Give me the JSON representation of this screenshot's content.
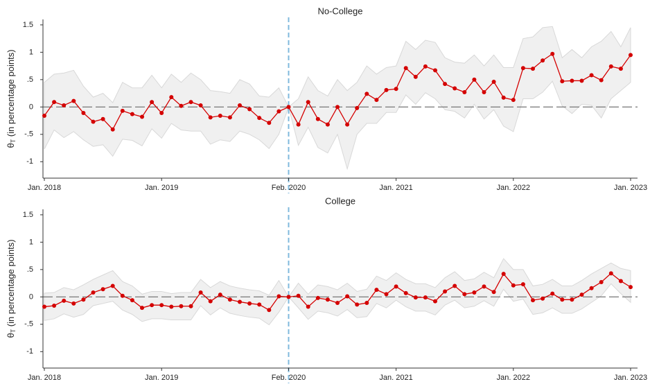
{
  "chart_data": [
    {
      "type": "line",
      "title": "No-College",
      "ylabel": {
        "symbol": "θ",
        "subscript": "T",
        "text": " (in percentage points)"
      },
      "categories": [
        "Jan. 2018",
        null,
        null,
        null,
        null,
        null,
        null,
        null,
        null,
        null,
        null,
        null,
        "Jan. 2019",
        null,
        null,
        null,
        null,
        null,
        null,
        null,
        null,
        null,
        null,
        null,
        null,
        "Feb. 2020",
        null,
        null,
        null,
        null,
        null,
        null,
        null,
        null,
        null,
        null,
        "Jan. 2021",
        null,
        null,
        null,
        null,
        null,
        null,
        null,
        null,
        null,
        null,
        null,
        "Jan. 2022",
        null,
        null,
        null,
        null,
        null,
        null,
        null,
        null,
        null,
        null,
        null,
        "Jan. 2023"
      ],
      "values": [
        -0.16,
        0.09,
        0.03,
        0.11,
        -0.11,
        -0.27,
        -0.22,
        -0.41,
        -0.07,
        -0.13,
        -0.18,
        0.09,
        -0.11,
        0.18,
        0.02,
        0.09,
        0.03,
        -0.19,
        -0.16,
        -0.19,
        0.03,
        -0.04,
        -0.2,
        -0.29,
        -0.08,
        0,
        -0.32,
        0.09,
        -0.22,
        -0.32,
        0,
        -0.32,
        -0.02,
        0.24,
        0.13,
        0.31,
        0.33,
        0.71,
        0.55,
        0.74,
        0.67,
        0.42,
        0.34,
        0.27,
        0.5,
        0.27,
        0.46,
        0.17,
        0.13,
        0.71,
        0.7,
        0.85,
        0.97,
        0.47,
        0.48,
        0.48,
        0.58,
        0.49,
        0.74,
        0.7,
        0.95
      ],
      "ci_upper": [
        0.45,
        0.6,
        0.62,
        0.67,
        0.38,
        0.18,
        0.25,
        0.08,
        0.45,
        0.35,
        0.35,
        0.58,
        0.35,
        0.6,
        0.45,
        0.62,
        0.5,
        0.3,
        0.28,
        0.25,
        0.5,
        0.42,
        0.2,
        0.18,
        0.35,
        0,
        0.15,
        0.55,
        0.3,
        0.2,
        0.5,
        0.3,
        0.45,
        0.75,
        0.6,
        0.72,
        0.75,
        1.2,
        1.05,
        1.22,
        1.18,
        0.9,
        0.82,
        0.8,
        0.95,
        0.75,
        0.95,
        0.72,
        0.72,
        1.25,
        1.28,
        1.45,
        1.47,
        0.9,
        1.05,
        0.9,
        1.1,
        1.2,
        1.38,
        1.1,
        1.45
      ],
      "ci_lower": [
        -0.77,
        -0.42,
        -0.56,
        -0.45,
        -0.6,
        -0.72,
        -0.69,
        -0.9,
        -0.59,
        -0.61,
        -0.71,
        -0.4,
        -0.57,
        -0.3,
        -0.42,
        -0.44,
        -0.44,
        -0.68,
        -0.6,
        -0.63,
        -0.44,
        -0.5,
        -0.6,
        -0.76,
        -0.5,
        0,
        -0.7,
        -0.37,
        -0.74,
        -0.84,
        -0.5,
        -1.13,
        -0.5,
        -0.3,
        -0.3,
        -0.1,
        -0.1,
        0.22,
        0.05,
        0.26,
        0.15,
        -0.05,
        -0.08,
        -0.2,
        0.05,
        -0.22,
        -0.05,
        -0.35,
        -0.45,
        0.15,
        0.15,
        0.27,
        0.47,
        0.02,
        -0.12,
        0.05,
        0.03,
        -0.2,
        0.15,
        0.3,
        0.45
      ],
      "color": "#d40000",
      "band_color": "#f0f0f0",
      "band_edge": "#d8d8d8",
      "ylim": [
        -1.3,
        1.6
      ],
      "yticks": [
        -1,
        {
          "value": -0.5,
          "label": "-.5"
        },
        0,
        {
          "value": 0.5,
          "label": ".5"
        },
        1,
        1.5
      ],
      "hline": 0,
      "vline": 25
    },
    {
      "type": "line",
      "title": "College",
      "ylabel": {
        "symbol": "θ",
        "subscript": "T",
        "text": " (in percentage points)"
      },
      "categories": [
        "Jan. 2018",
        null,
        null,
        null,
        null,
        null,
        null,
        null,
        null,
        null,
        null,
        null,
        "Jan. 2019",
        null,
        null,
        null,
        null,
        null,
        null,
        null,
        null,
        null,
        null,
        null,
        null,
        "Feb. 2020",
        null,
        null,
        null,
        null,
        null,
        null,
        null,
        null,
        null,
        null,
        "Jan. 2021",
        null,
        null,
        null,
        null,
        null,
        null,
        null,
        null,
        null,
        null,
        null,
        "Jan. 2022",
        null,
        null,
        null,
        null,
        null,
        null,
        null,
        null,
        null,
        null,
        null,
        "Jan. 2023"
      ],
      "values": [
        -0.18,
        -0.16,
        -0.07,
        -0.12,
        -0.05,
        0.08,
        0.14,
        0.2,
        0.02,
        -0.06,
        -0.2,
        -0.15,
        -0.15,
        -0.18,
        -0.17,
        -0.17,
        0.08,
        -0.08,
        0.04,
        -0.05,
        -0.09,
        -0.12,
        -0.14,
        -0.24,
        0.01,
        0,
        0.02,
        -0.18,
        -0.02,
        -0.05,
        -0.11,
        0.01,
        -0.14,
        -0.11,
        0.13,
        0.05,
        0.19,
        0.07,
        -0.01,
        -0.01,
        -0.08,
        0.1,
        0.2,
        0.05,
        0.08,
        0.19,
        0.09,
        0.42,
        0.21,
        0.23,
        -0.06,
        -0.03,
        0.06,
        -0.05,
        -0.05,
        0.04,
        0.16,
        0.27,
        0.43,
        0.29,
        0.18
      ],
      "ci_upper": [
        0.07,
        0.08,
        0.17,
        0.13,
        0.22,
        0.32,
        0.4,
        0.48,
        0.28,
        0.2,
        0.05,
        0.1,
        0.1,
        0.06,
        0.08,
        0.08,
        0.32,
        0.17,
        0.28,
        0.2,
        0.16,
        0.13,
        0.11,
        0.03,
        0.3,
        0,
        0.25,
        0.05,
        0.22,
        0.19,
        0.13,
        0.25,
        0.1,
        0.14,
        0.38,
        0.3,
        0.44,
        0.32,
        0.24,
        0.24,
        0.17,
        0.35,
        0.46,
        0.3,
        0.33,
        0.45,
        0.35,
        0.7,
        0.5,
        0.5,
        0.2,
        0.23,
        0.32,
        0.2,
        0.2,
        0.3,
        0.42,
        0.52,
        0.62,
        0.52,
        0.48
      ],
      "ci_lower": [
        -0.43,
        -0.4,
        -0.31,
        -0.37,
        -0.32,
        -0.16,
        -0.12,
        -0.08,
        -0.24,
        -0.32,
        -0.45,
        -0.4,
        -0.4,
        -0.42,
        -0.42,
        -0.42,
        -0.16,
        -0.33,
        -0.2,
        -0.3,
        -0.34,
        -0.37,
        -0.39,
        -0.51,
        -0.28,
        0,
        -0.2,
        -0.41,
        -0.26,
        -0.29,
        -0.35,
        -0.23,
        -0.38,
        -0.36,
        -0.12,
        -0.2,
        -0.06,
        -0.18,
        -0.26,
        -0.26,
        -0.33,
        -0.15,
        -0.06,
        -0.2,
        -0.17,
        -0.07,
        -0.17,
        0.14,
        -0.08,
        -0.04,
        -0.32,
        -0.29,
        -0.2,
        -0.3,
        -0.3,
        -0.22,
        -0.1,
        0.02,
        0.24,
        0.06,
        -0.1
      ],
      "color": "#d40000",
      "band_color": "#f0f0f0",
      "band_edge": "#d8d8d8",
      "ylim": [
        -1.3,
        1.6
      ],
      "yticks": [
        -1,
        {
          "value": -0.5,
          "label": "-.5"
        },
        0,
        {
          "value": 0.5,
          "label": ".5"
        },
        1,
        1.5
      ],
      "hline": 0,
      "vline": 25
    }
  ]
}
